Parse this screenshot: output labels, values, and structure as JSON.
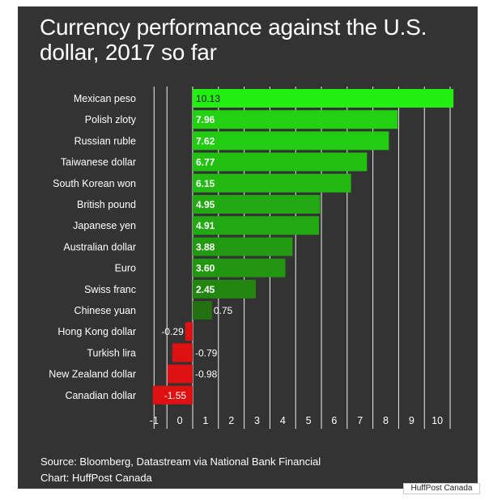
{
  "title": "Currency performance against the U.S. dollar, 2017 so far",
  "source_line": "Source: Bloomberg, Datastream via National Bank Financial",
  "credit_line": "Chart: HuffPost Canada",
  "watermark": "HuffPost Canada",
  "colors": {
    "background": "#333333",
    "positive_max": "#22ee11",
    "positive_min": "#226611",
    "negative": "#dd1111"
  },
  "chart_data": {
    "type": "bar",
    "orientation": "horizontal",
    "categories": [
      "Mexican peso",
      "Polish zloty",
      "Russian ruble",
      "Taiwanese dollar",
      "South Korean won",
      "British pound",
      "Japanese yen",
      "Australian dollar",
      "Euro",
      "Swiss franc",
      "Chinese yuan",
      "Hong Kong dollar",
      "Turkish lira",
      "New Zealand dollar",
      "Canadian dollar"
    ],
    "values": [
      10.13,
      7.96,
      7.62,
      6.77,
      6.15,
      4.95,
      4.91,
      3.88,
      3.6,
      2.45,
      0.75,
      -0.29,
      -0.79,
      -0.98,
      -1.55
    ],
    "labels": [
      "10.13",
      "7.96",
      "7.62",
      "6.77",
      "6.15",
      "4.95",
      "4.91",
      "3.88",
      "3.60",
      "2.45",
      "0.75",
      "-0.29",
      "-0.79",
      "-0.98",
      "-1.55"
    ],
    "xlim": [
      -2,
      10.5
    ],
    "xticks": [
      -1,
      0,
      1,
      2,
      3,
      4,
      5,
      6,
      7,
      8,
      9,
      10
    ],
    "xtick_labels": [
      "-1",
      "0",
      "1",
      "2",
      "3",
      "4",
      "5",
      "6",
      "7",
      "8",
      "9",
      "10"
    ],
    "grid": true,
    "legend": "none"
  }
}
